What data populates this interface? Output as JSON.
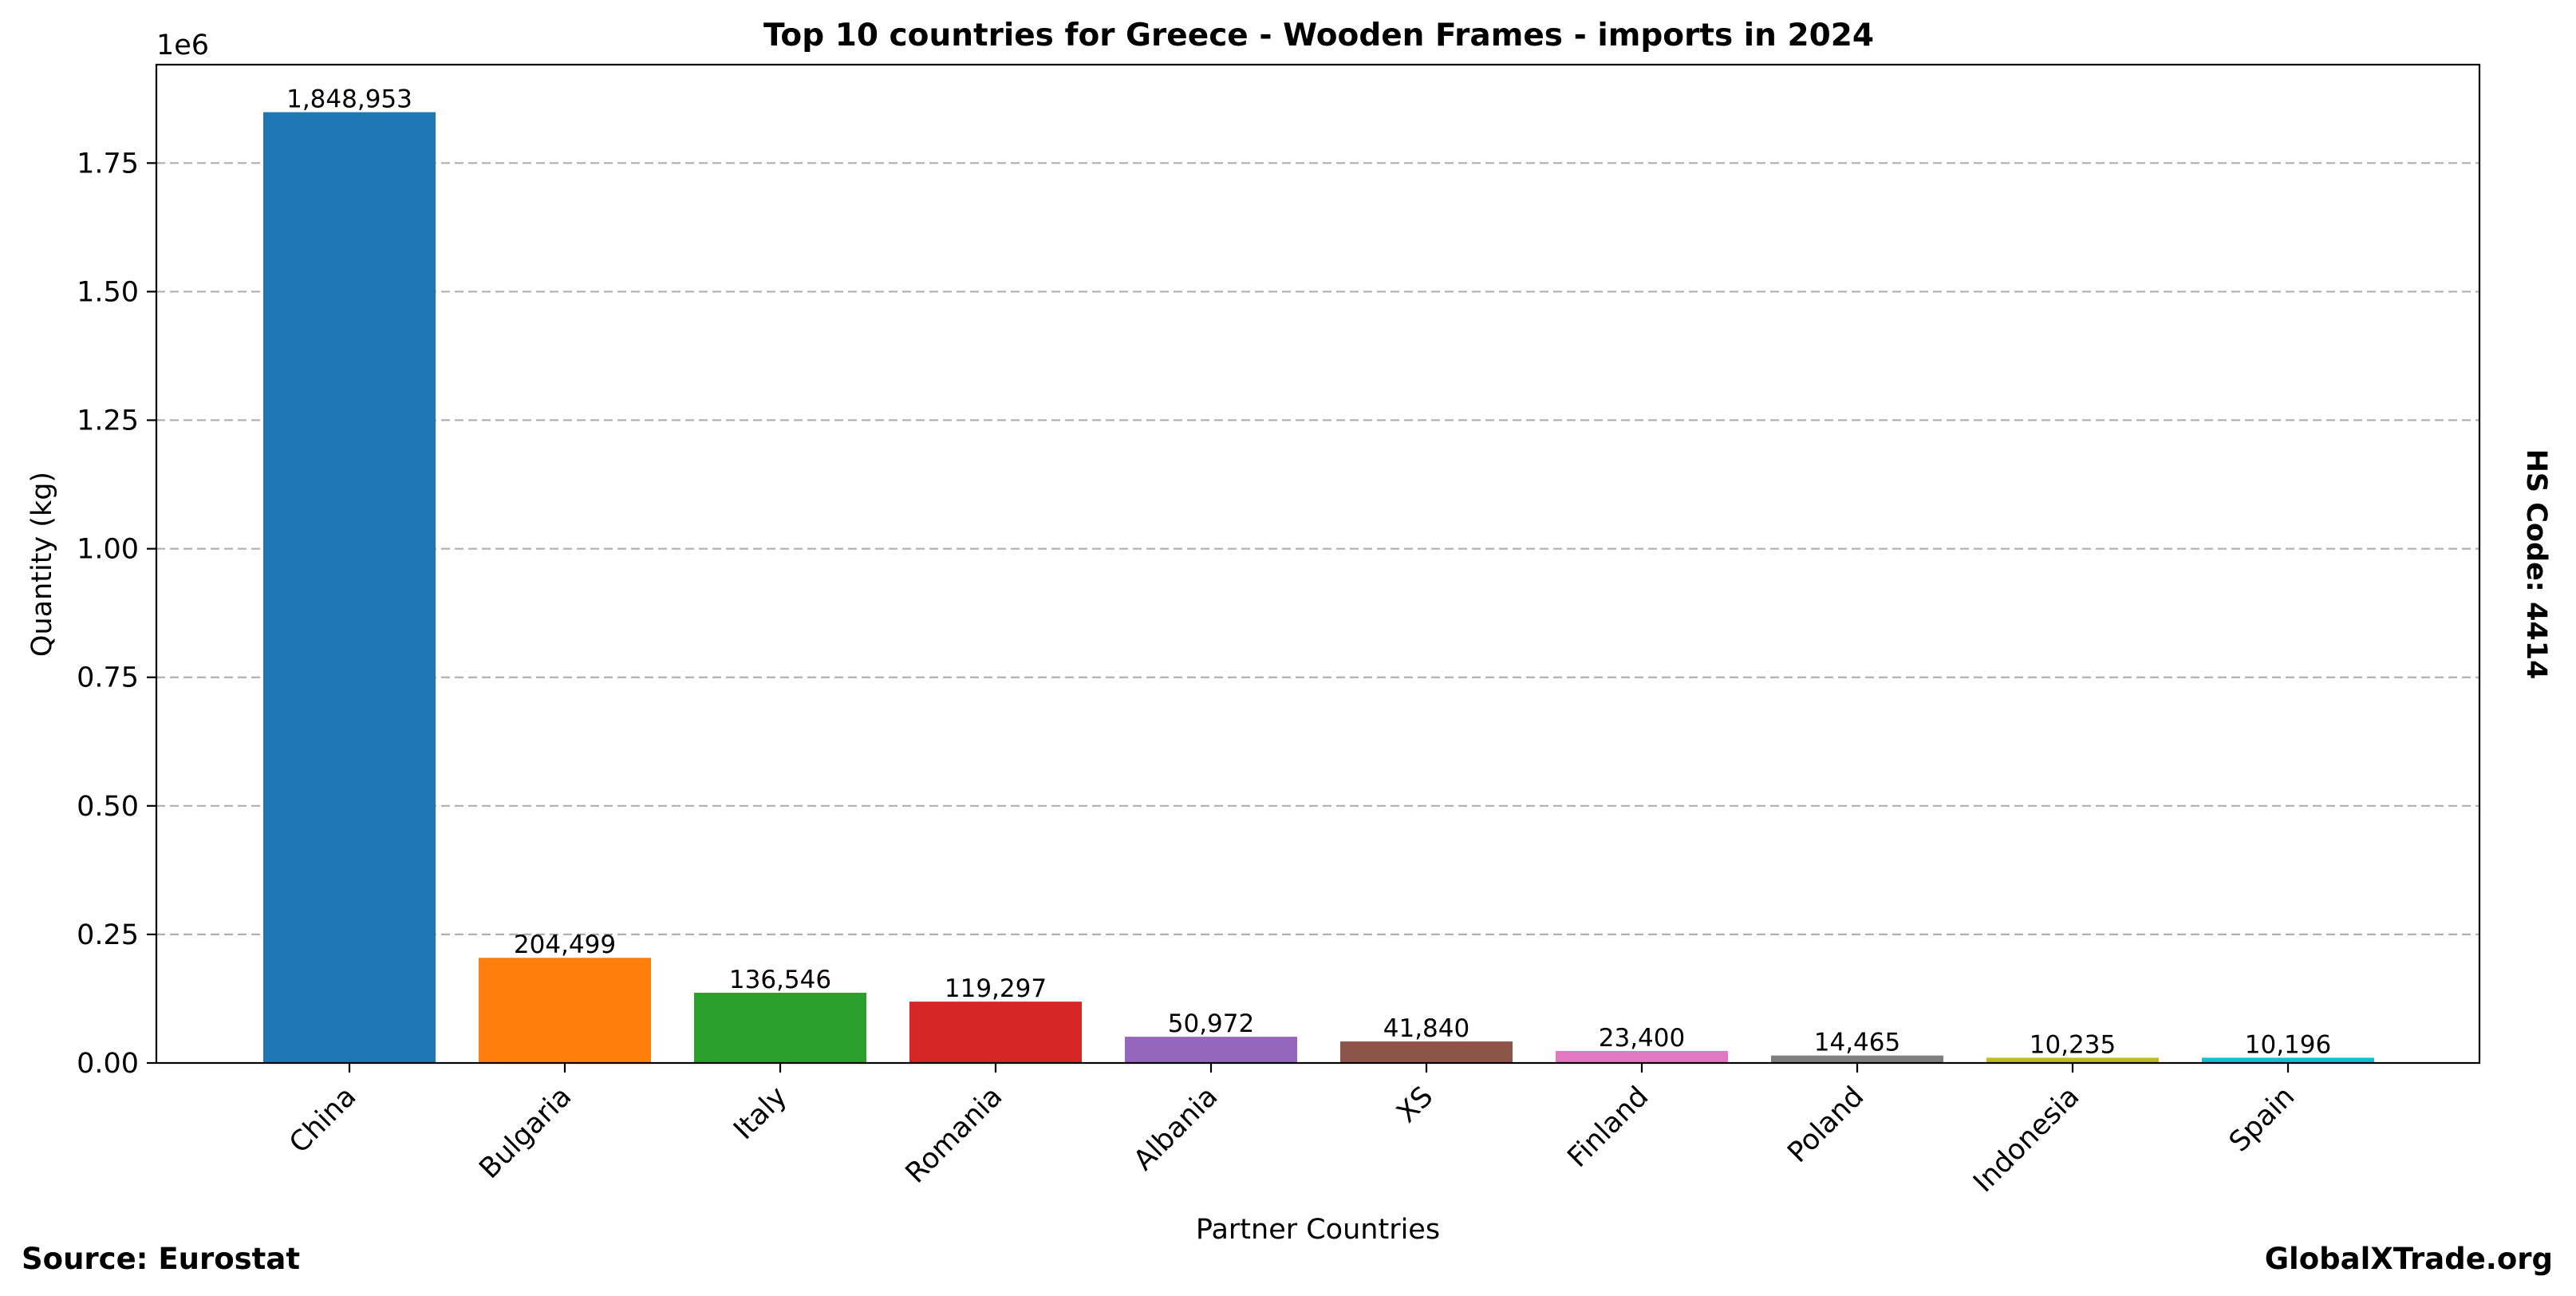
{
  "chart_data": {
    "type": "bar",
    "title": "Top 10 countries for Greece - Wooden Frames - imports in 2024",
    "xlabel": "Partner Countries",
    "ylabel": "Quantity (kg)",
    "y_scale_note": "1e6",
    "categories": [
      "China",
      "Bulgaria",
      "Italy",
      "Romania",
      "Albania",
      "XS",
      "Finland",
      "Poland",
      "Indonesia",
      "Spain"
    ],
    "values": [
      1848953,
      204499,
      136546,
      119297,
      50972,
      41840,
      23400,
      14465,
      10235,
      10196
    ],
    "value_labels": [
      "1,848,953",
      "204,499",
      "136,546",
      "119,297",
      "50,972",
      "41,840",
      "23,400",
      "14,465",
      "10,235",
      "10,196"
    ],
    "colors": [
      "#1f77b4",
      "#ff7f0e",
      "#2ca02c",
      "#d62728",
      "#9467bd",
      "#8c564b",
      "#e377c2",
      "#7f7f7f",
      "#bcbd22",
      "#17becf"
    ],
    "ylim": [
      0,
      1941400
    ],
    "yticks": [
      0,
      250000,
      500000,
      750000,
      1000000,
      1250000,
      1500000,
      1750000
    ],
    "ytick_labels": [
      "0.00",
      "0.25",
      "0.50",
      "0.75",
      "1.00",
      "1.25",
      "1.50",
      "1.75"
    ],
    "grid": "horizontal dashed",
    "legend": "none"
  },
  "footer": {
    "source": "Source: Eurostat",
    "brand": "GlobalXTrade.org",
    "hs_code": "HS Code: 4414"
  }
}
